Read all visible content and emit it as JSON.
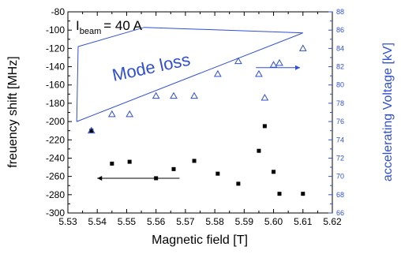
{
  "chart_data": {
    "type": "scatter",
    "xlabel": "Magnetic field [T]",
    "ylabel_left": "freuency shift [MHz]",
    "ylabel_right": "accelerating Voltage [kV]",
    "xlim": [
      5.53,
      5.62
    ],
    "ylim_left": [
      -300,
      -80
    ],
    "ylim_right": [
      66,
      88
    ],
    "x_ticks": [
      5.53,
      5.54,
      5.55,
      5.56,
      5.57,
      5.58,
      5.59,
      5.6,
      5.61,
      5.62
    ],
    "y_left_ticks": [
      -300,
      -280,
      -260,
      -240,
      -220,
      -200,
      -180,
      -160,
      -140,
      -120,
      -100,
      -80
    ],
    "y_right_ticks": [
      66,
      68,
      70,
      72,
      74,
      76,
      78,
      80,
      82,
      84,
      86,
      88
    ],
    "colors": {
      "left": "#000000",
      "right": "#2f4fd0"
    },
    "annotations": {
      "beam_main": "I",
      "beam_sub": "beam",
      "beam_rest": "= 40 A",
      "mode_loss": "Mode loss"
    },
    "series": [
      {
        "axis": "left",
        "marker": "filled-square",
        "x": [
          5.538,
          5.545,
          5.551,
          5.56,
          5.566,
          5.573,
          5.581,
          5.588,
          5.595,
          5.597,
          5.6,
          5.602,
          5.61
        ],
        "y": [
          -210,
          -246,
          -244,
          -262,
          -252,
          -243,
          -257,
          -268,
          -232,
          -205,
          -255,
          -279,
          -279
        ]
      },
      {
        "axis": "right",
        "marker": "open-triangle",
        "x": [
          5.538,
          5.545,
          5.551,
          5.56,
          5.566,
          5.573,
          5.581,
          5.588,
          5.595,
          5.597,
          5.6,
          5.602,
          5.61
        ],
        "y": [
          75.0,
          76.8,
          76.8,
          78.8,
          78.8,
          78.8,
          81.2,
          82.6,
          81.2,
          78.6,
          82.2,
          82.4,
          84.0
        ]
      }
    ],
    "mode_loss_polygon": {
      "x": [
        5.533,
        5.5335,
        5.556,
        5.61,
        5.533
      ],
      "y_left": [
        -200,
        -118,
        -97,
        -103,
        -200
      ]
    },
    "arrows": [
      {
        "axis": "left",
        "from": [
          5.568,
          -262
        ],
        "to": [
          5.54,
          -262
        ]
      },
      {
        "axis": "right",
        "from": [
          5.594,
          81.9
        ],
        "to": [
          5.609,
          81.9
        ]
      }
    ]
  }
}
